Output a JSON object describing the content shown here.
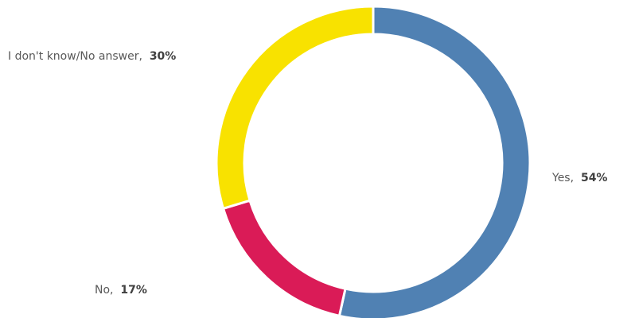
{
  "chart_data": {
    "type": "pie",
    "style": "donut",
    "title": "",
    "legend": "none",
    "slices": [
      {
        "label": "Yes",
        "value": 54,
        "value_label": "54%",
        "color": "#5081B3"
      },
      {
        "label": "No",
        "value": 17,
        "value_label": "17%",
        "color": "#DA1B57"
      },
      {
        "label": "I don't know/No answer",
        "value": 30,
        "value_label": "30%",
        "color": "#F8E200"
      }
    ]
  }
}
